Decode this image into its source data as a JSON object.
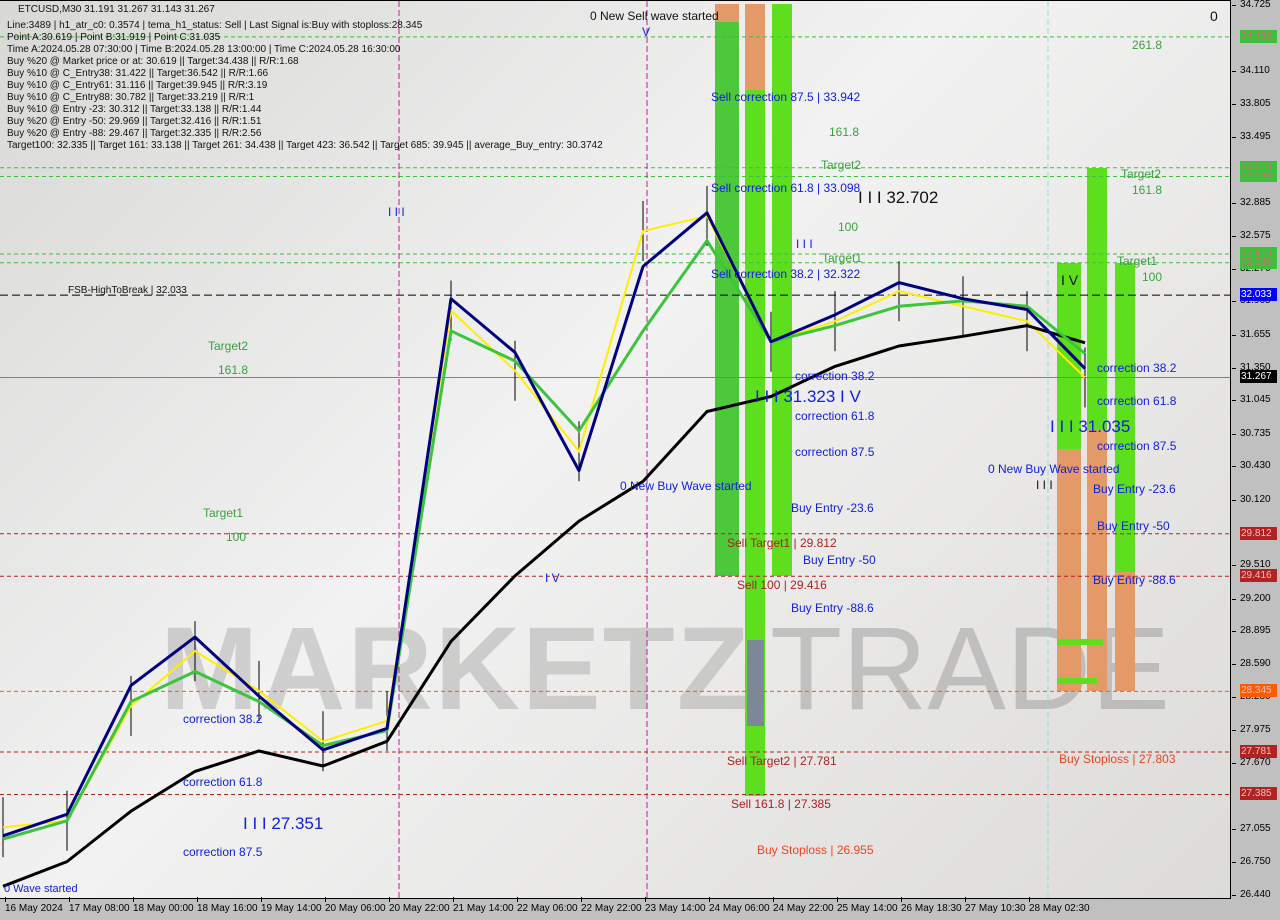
{
  "header": {
    "symbol_line": "ETCUSD,M30  31.191 31.267 31.143 31.267",
    "info_lines": [
      "Line:3489 | h1_atr_c0: 0.3574 | tema_h1_status: Sell | Last Signal is:Buy with stoploss:28.345",
      "Point A:30.619 | Point B:31.919 | Point C:31.035",
      "Time A:2024.05.28 07:30:00 | Time B:2024.05.28 13:00:00 | Time C:2024.05.28 16:30:00",
      "Buy %20 @ Market price or at: 30.619 || Target:34.438 || R/R:1.68",
      "Buy %10 @ C_Entry38: 31.422 || Target:36.542 || R/R:1.66",
      "Buy %10 @ C_Entry61: 31.116 || Target:39.945 || R/R:3.19",
      "Buy %10 @ C_Entry88: 30.782 || Target:33.219 || R/R:1",
      "Buy %10 @ Entry -23: 30.312 || Target:33.138 || R/R:1.44",
      "Buy %20 @ Entry -50: 29.969 || Target:32.416 || R/R:1.51",
      "Buy %20 @ Entry -88: 29.467 || Target:32.335 || R/R:2.56",
      "Target100: 32.335 || Target 161: 33.138 || Target 261: 34.438 || Target 423: 36.542 || Target 685: 39.945 || average_Buy_entry: 30.3742"
    ]
  },
  "watermark": {
    "left": "MARKETZI",
    "right": "TRADE"
  },
  "annotations": {
    "sell_wave": "0 New Sell wave started",
    "buy_wave_1": "0 New Buy Wave started",
    "buy_wave_2": "0 New Buy Wave started",
    "wave_started_bottom": "0 Wave started",
    "sell_corr_875": "Sell correction 87.5 | 33.942",
    "sell_corr_618": "Sell correction 61.8 | 33.098",
    "sell_corr_382": "Sell correction 38.2 | 32.322",
    "fsb": "FSB-HighToBreak | 32.033",
    "lvl_261_8": "261.8",
    "lvl_161_8_a": "161.8",
    "lvl_161_8_b": "161.8",
    "lvl_161_8_c": "161.8",
    "lvl_100_a": "100",
    "lvl_100_b": "100",
    "lvl_100_c": "100",
    "target2_a": "Target2",
    "target2_b": "Target2",
    "target2_c": "Target2",
    "target1_a": "Target1",
    "target1_b": "Target1",
    "target1_c": "Target1",
    "wave_32702": "I I I 32.702",
    "wave_31323": "I I I 31.323 I V",
    "wave_31035": "I I I 31.035",
    "wave_27351": "I I I 27.351",
    "corr_382_a": "correction 38.2",
    "corr_618_a": "correction 61.8",
    "corr_875_a": "correction 87.5",
    "corr_382_b": "correction 38.2",
    "corr_618_b": "correction 61.8",
    "corr_875_b": "correction 87.5",
    "corr_382_c": "correction 38.2",
    "corr_618_c": "correction 61.8",
    "corr_875_c": "correction 87.5",
    "buy_entry_236_a": "Buy Entry -23.6",
    "buy_entry_50_a": "Buy Entry -50",
    "buy_entry_886_a": "Buy Entry -88.6",
    "buy_entry_236_b": "Buy Entry -23.6",
    "buy_entry_50_b": "Buy Entry -50",
    "buy_entry_886_b": "Buy Entry -88.6",
    "sell_target1": "Sell Target1 | 29.812",
    "sell_100": "Sell 100 | 29.416",
    "sell_target2": "Sell Target2 | 27.781",
    "sell_1618": "Sell 161.8 | 27.385",
    "buy_stoploss_a": "Buy Stoploss | 26.955",
    "buy_stoploss_b": "Buy Stoploss | 27.803",
    "wave_iv_a": "I V",
    "wave_iv_b": "I V",
    "wave_iii_a": "I I I",
    "wave_iii_b": "I I I",
    "wave_v": "V",
    "corner_zero": "0"
  },
  "chart_data": {
    "type": "line",
    "title": "ETCUSD,M30",
    "x_ticks": [
      "16 May 2024",
      "17 May 08:00",
      "18 May 00:00",
      "18 May 16:00",
      "19 May 14:00",
      "20 May 06:00",
      "20 May 22:00",
      "21 May 14:00",
      "22 May 06:00",
      "22 May 22:00",
      "23 May 14:00",
      "24 May 06:00",
      "24 May 22:00",
      "25 May 14:00",
      "26 May 18:30",
      "27 May 10:30",
      "28 May 02:30"
    ],
    "y_ticks": [
      "34.725",
      "34.110",
      "33.805",
      "33.495",
      "32.885",
      "32.575",
      "32.270",
      "31.965",
      "31.655",
      "31.350",
      "31.045",
      "30.735",
      "30.430",
      "30.120",
      "29.510",
      "29.200",
      "28.895",
      "28.590",
      "28.280",
      "27.975",
      "27.670",
      "27.055",
      "26.750",
      "26.440"
    ],
    "ylim": [
      26.44,
      34.725
    ],
    "grid": false,
    "series": [
      {
        "key": "price",
        "color": "#000000",
        "values": [
          27.08,
          27.14,
          28.21,
          28.72,
          28.35,
          27.88,
          28.07,
          31.89,
          31.33,
          30.58,
          32.63,
          32.77,
          31.6,
          31.79,
          32.07,
          31.93,
          31.79
        ],
        "last": 31.267
      },
      {
        "key": "ma_slow",
        "color": "#000000",
        "values": [
          26.53,
          26.76,
          27.23,
          27.6,
          27.79,
          27.65,
          27.88,
          28.81,
          29.42,
          29.93,
          30.3,
          30.95,
          31.09,
          31.37,
          31.56,
          31.65,
          31.75
        ],
        "last": 31.59
      },
      {
        "key": "ma_mid",
        "color": "#3cc43c",
        "values": [
          26.97,
          27.14,
          28.25,
          28.53,
          28.25,
          27.84,
          27.98,
          31.7,
          31.42,
          30.77,
          31.7,
          32.54,
          31.6,
          31.75,
          31.93,
          31.98,
          31.93
        ],
        "last": 31.49
      },
      {
        "key": "ma_fast",
        "color": "#000080",
        "values": [
          27.0,
          27.2,
          28.4,
          28.85,
          28.3,
          27.8,
          28.0,
          32.0,
          31.5,
          30.4,
          32.3,
          32.8,
          31.6,
          31.85,
          32.15,
          32.0,
          31.9
        ],
        "last": 31.35
      }
    ],
    "levels": [
      {
        "value": 34.438,
        "label": "34.438",
        "color": "#3cbf3c",
        "text_color": "#d07070",
        "style": "dashed"
      },
      {
        "value": 33.219,
        "label": "33.219",
        "color": "#3cbf3c",
        "text_color": "#d07070",
        "style": "dashed"
      },
      {
        "value": 33.138,
        "label": "33.138",
        "color": "#3cbf3c",
        "text_color": "#d07070",
        "style": "dashed"
      },
      {
        "value": 32.416,
        "label": "32.416",
        "color": "#3cbf3c",
        "text_color": "#d07070",
        "style": "dashed"
      },
      {
        "value": 32.335,
        "label": "32.335",
        "color": "#3cbf3c",
        "text_color": "#d07070",
        "style": "dashed"
      },
      {
        "value": 32.033,
        "label": "32.033",
        "color": "#0000ff",
        "text_color": "#ffffff",
        "style": "dashed-black"
      },
      {
        "value": 31.267,
        "label": "31.267",
        "color": "#000000",
        "text_color": "#ffffff",
        "style": "solid-gray"
      },
      {
        "value": 29.812,
        "label": "29.812",
        "color": "#b22222",
        "text_color": "#f0c0c0",
        "style": "dashed"
      },
      {
        "value": 29.416,
        "label": "29.416",
        "color": "#b22222",
        "text_color": "#f0c0c0",
        "style": "dashed"
      },
      {
        "value": 28.345,
        "label": "28.345",
        "color": "#ff5a00",
        "text_color": "#f0c0c0",
        "style": "dashed"
      },
      {
        "value": 27.781,
        "label": "27.781",
        "color": "#b22222",
        "text_color": "#f0c0c0",
        "style": "dashed"
      },
      {
        "value": 27.385,
        "label": "27.385",
        "color": "#b22222",
        "text_color": "#f0c0c0",
        "style": "dashed"
      }
    ]
  }
}
